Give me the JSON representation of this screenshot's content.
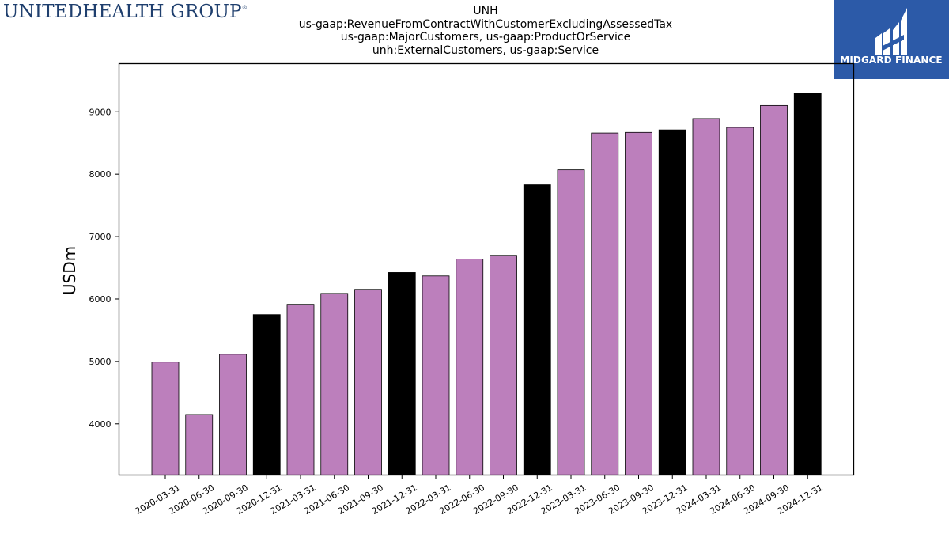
{
  "logos": {
    "company": "UnitedHealth Group",
    "company_display": "UNITEDHEALTH GROUP",
    "company_mark": "®",
    "brand": "MIDGARD FINANCE",
    "brand_color": "#2c5aa8"
  },
  "colors": {
    "quarter_bar": "#bc7fbc",
    "year_end_bar": "#000000",
    "bar_edge": "#000000"
  },
  "chart_data": {
    "type": "bar",
    "title": "UNH",
    "subtitle_lines": [
      "us-gaap:RevenueFromContractWithCustomerExcludingAssessedTax",
      "us-gaap:MajorCustomers, us-gaap:ProductOrService",
      "unh:ExternalCustomers, us-gaap:Service"
    ],
    "ylabel": "USDm",
    "xlabel": "",
    "ylim": [
      3180,
      9770
    ],
    "yticks": [
      4000,
      5000,
      6000,
      7000,
      8000,
      9000
    ],
    "grid": false,
    "categories": [
      "2020-03-31",
      "2020-06-30",
      "2020-09-30",
      "2020-12-31",
      "2021-03-31",
      "2021-06-30",
      "2021-09-30",
      "2021-12-31",
      "2022-03-31",
      "2022-06-30",
      "2022-09-30",
      "2022-12-31",
      "2023-03-31",
      "2023-06-30",
      "2023-09-30",
      "2023-12-31",
      "2024-03-31",
      "2024-06-30",
      "2024-09-30",
      "2024-12-31"
    ],
    "values": [
      4990,
      4150,
      5115,
      5750,
      5915,
      6090,
      6155,
      6425,
      6370,
      6640,
      6700,
      7830,
      8070,
      8660,
      8670,
      8710,
      8890,
      8750,
      9100,
      9290
    ],
    "year_end": [
      false,
      false,
      false,
      true,
      false,
      false,
      false,
      true,
      false,
      false,
      false,
      true,
      false,
      false,
      false,
      true,
      false,
      false,
      false,
      true
    ]
  }
}
